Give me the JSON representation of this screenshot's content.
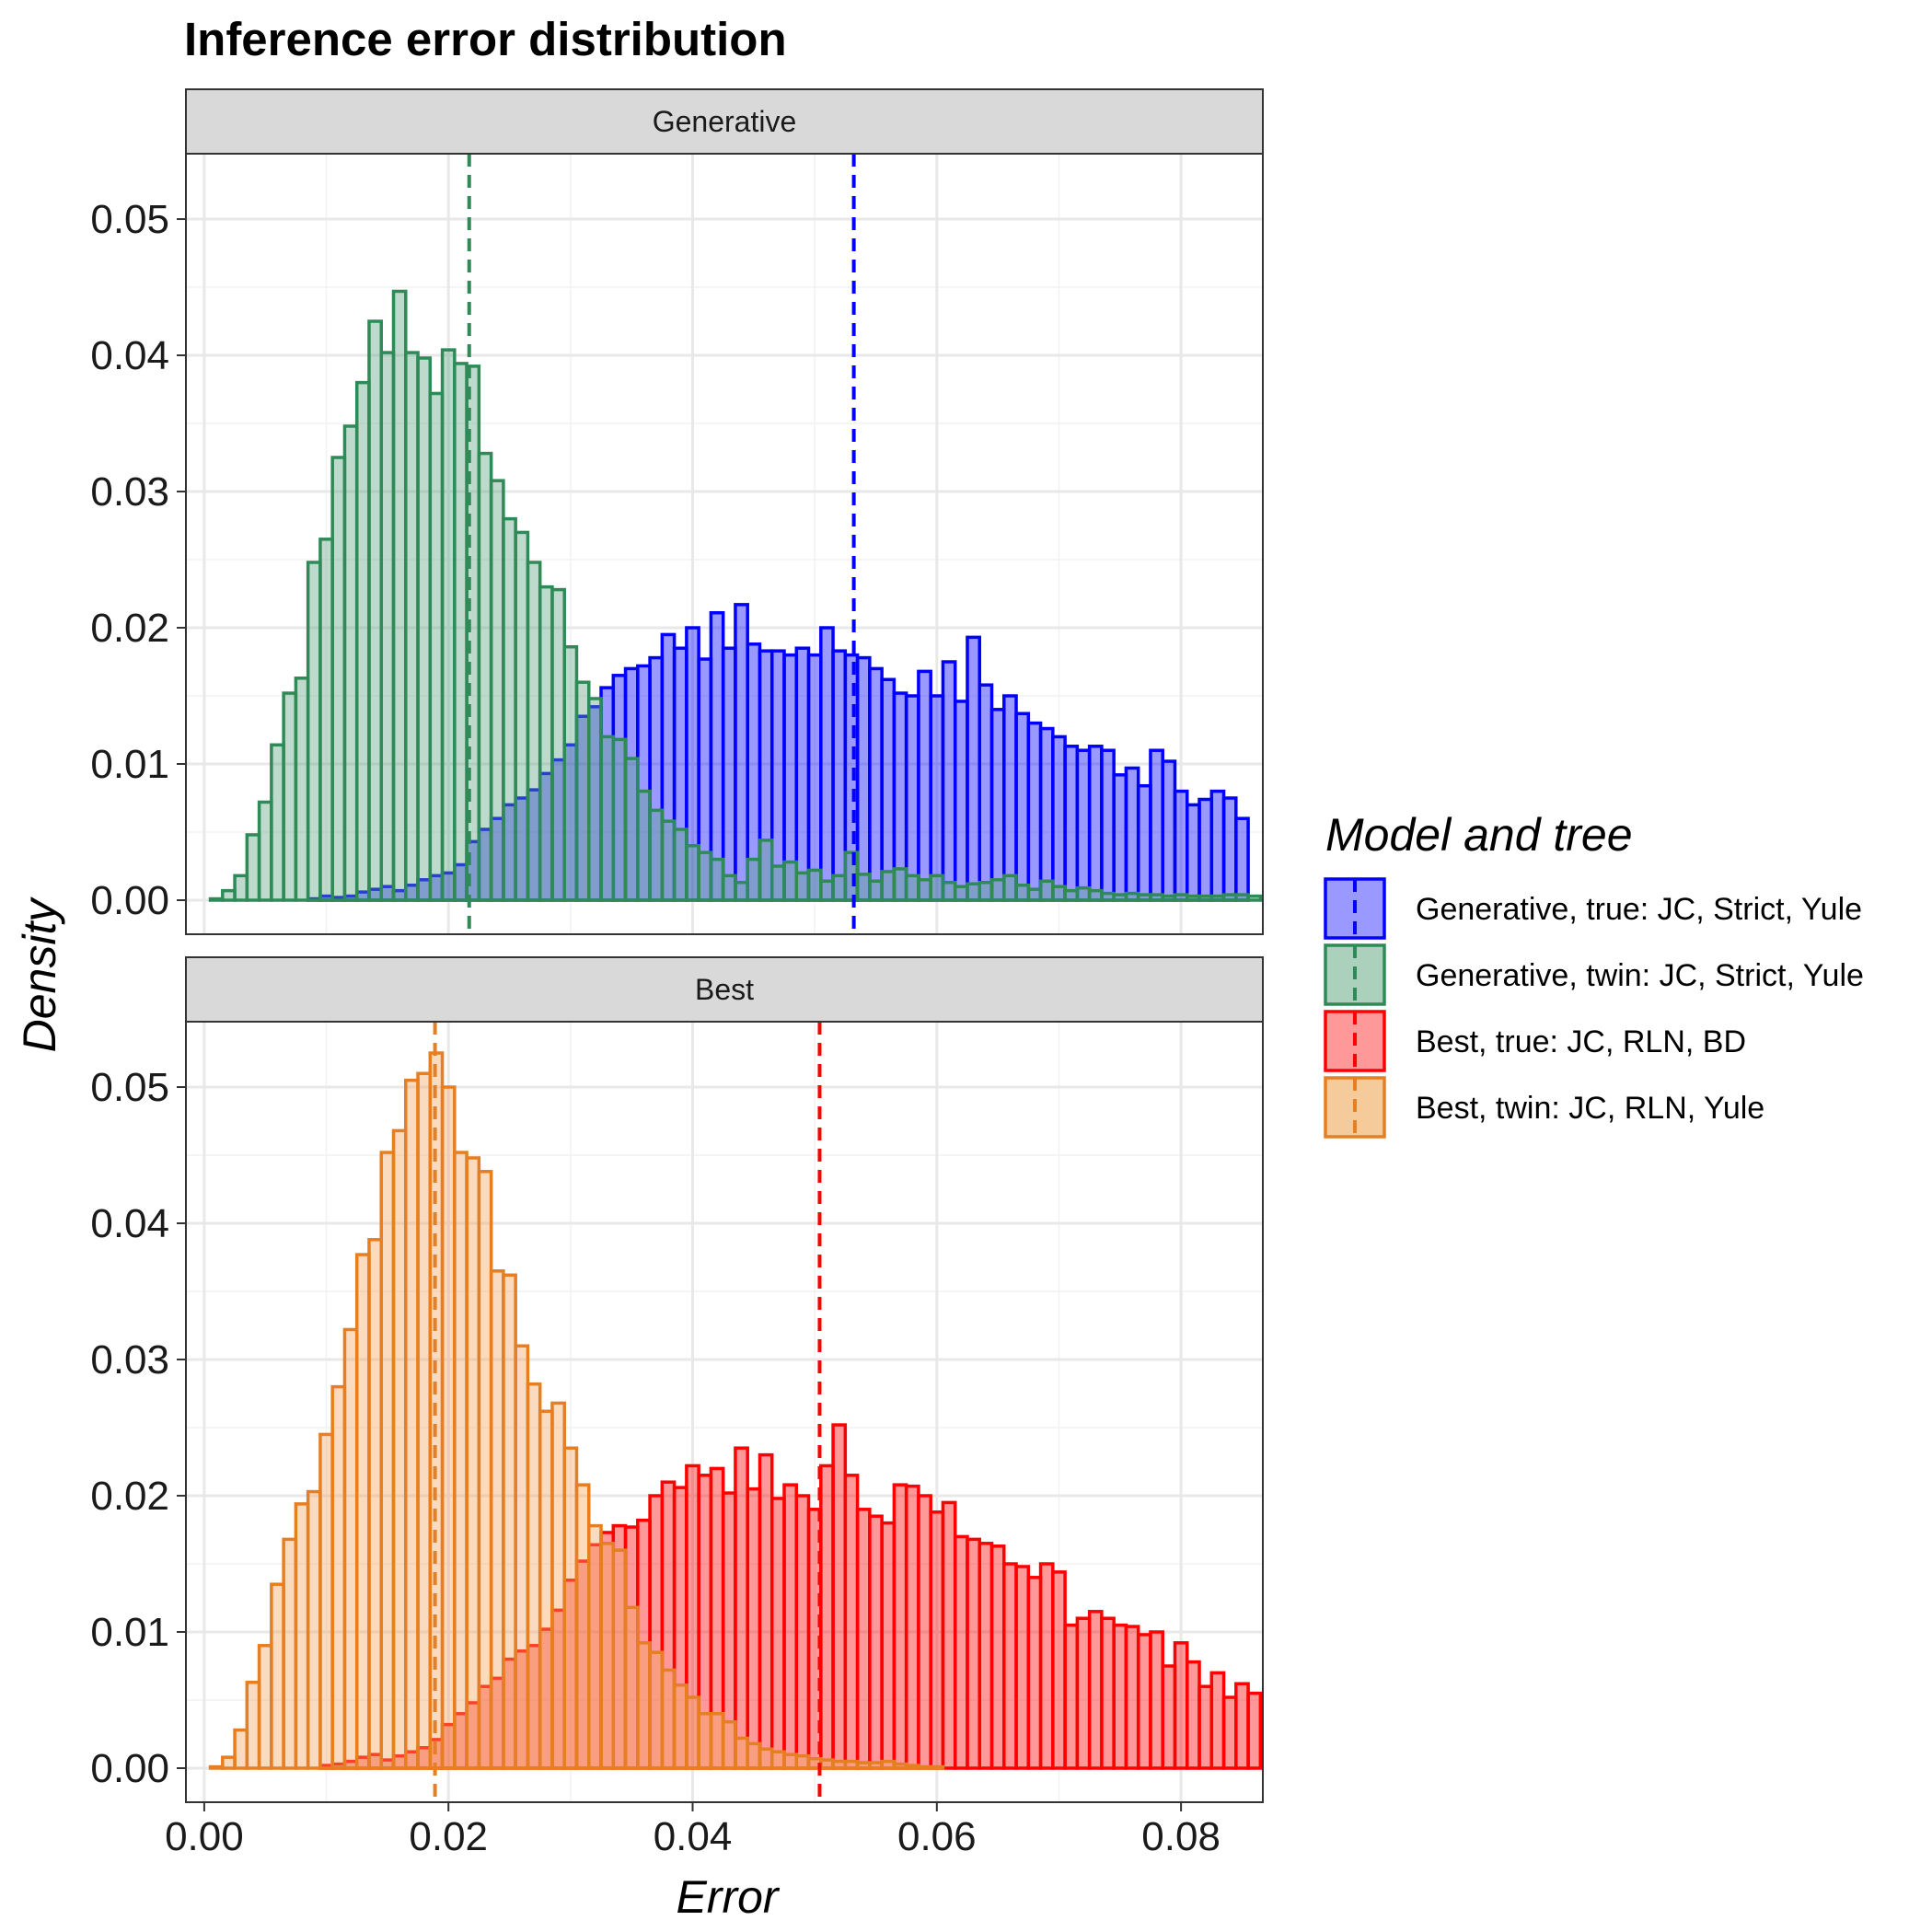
{
  "chart_data": {
    "type": "histogram",
    "title": "Inference error distribution",
    "xlabel": "Error",
    "ylabel": "Density",
    "xlim": [
      -0.0015,
      0.0867
    ],
    "ylim": [
      -0.0025,
      0.0548
    ],
    "x_ticks": [
      "0.00",
      "0.02",
      "0.04",
      "0.06",
      "0.08"
    ],
    "y_ticks": [
      "0.00",
      "0.01",
      "0.02",
      "0.03",
      "0.04",
      "0.05"
    ],
    "bin_start": 0.0005,
    "bin_width": 0.001,
    "grid": true,
    "legend": {
      "title": "Model and tree",
      "position": "right",
      "items": [
        {
          "label": "Generative, true: JC, Strict, Yule",
          "color": "#0000ff",
          "fill": "#9999ff"
        },
        {
          "label": "Generative, twin: JC, Strict, Yule",
          "color": "#2e8b57",
          "fill": "#abd1bc"
        },
        {
          "label": "Best, true: JC, RLN, BD",
          "color": "#ff0000",
          "fill": "#ff9999"
        },
        {
          "label": "Best, twin: JC, RLN, Yule",
          "color": "#e67e22",
          "fill": "#f5cb9c"
        }
      ]
    },
    "panels": [
      {
        "strip": "Generative",
        "series": [
          {
            "name": "Generative, true: JC, Strict, Yule",
            "line_color": "#0000ff",
            "fill_color": "#0000ff",
            "mean": 0.0532,
            "values": [
              0,
              0,
              0,
              0,
              0,
              0,
              0,
              0,
              0.0001,
              0.0003,
              0.0002,
              0.0003,
              0.0006,
              0.0008,
              0.001,
              0.0007,
              0.0011,
              0.0015,
              0.0018,
              0.002,
              0.0026,
              0.0043,
              0.0052,
              0.006,
              0.007,
              0.0075,
              0.0081,
              0.0093,
              0.0103,
              0.0114,
              0.0135,
              0.0142,
              0.0156,
              0.0165,
              0.017,
              0.0172,
              0.0178,
              0.0195,
              0.0185,
              0.02,
              0.0177,
              0.0211,
              0.0185,
              0.0217,
              0.0188,
              0.0183,
              0.0183,
              0.018,
              0.0185,
              0.018,
              0.02,
              0.0183,
              0.018,
              0.0178,
              0.017,
              0.0162,
              0.0152,
              0.015,
              0.0168,
              0.015,
              0.0175,
              0.0146,
              0.0193,
              0.0158,
              0.014,
              0.015,
              0.0137,
              0.013,
              0.0126,
              0.012,
              0.0113,
              0.011,
              0.0113,
              0.011,
              0.0092,
              0.0097,
              0.0084,
              0.011,
              0.0102,
              0.008,
              0.007,
              0.0074,
              0.008,
              0.0075,
              0.006
            ]
          },
          {
            "name": "Generative, twin: JC, Strict, Yule",
            "line_color": "#2e8b57",
            "fill_color": "#5da382",
            "mean": 0.0217,
            "values": [
              0.0001,
              0.0007,
              0.0018,
              0.0048,
              0.0072,
              0.0114,
              0.0152,
              0.0163,
              0.0248,
              0.0265,
              0.0325,
              0.0348,
              0.038,
              0.0425,
              0.0402,
              0.0447,
              0.0402,
              0.0398,
              0.0372,
              0.0404,
              0.0394,
              0.0392,
              0.0328,
              0.0308,
              0.028,
              0.027,
              0.0248,
              0.023,
              0.0228,
              0.0186,
              0.016,
              0.0148,
              0.012,
              0.0118,
              0.0104,
              0.008,
              0.0066,
              0.0058,
              0.0052,
              0.004,
              0.0035,
              0.003,
              0.0018,
              0.0013,
              0.003,
              0.0044,
              0.0025,
              0.0028,
              0.002,
              0.0022,
              0.0014,
              0.0018,
              0.0035,
              0.0019,
              0.0014,
              0.0021,
              0.0023,
              0.0018,
              0.0015,
              0.0018,
              0.0013,
              0.001,
              0.0012,
              0.0013,
              0.0015,
              0.0018,
              0.0011,
              0.0008,
              0.0014,
              0.001,
              0.0007,
              0.0009,
              0.0007,
              0.0005,
              0.0004,
              0.0005,
              0.0004,
              0.0004,
              0.0003,
              0.0004,
              0.0003,
              0.0003,
              0.0003,
              0.0004,
              0.0004,
              0.0003
            ]
          }
        ]
      },
      {
        "strip": "Best",
        "series": [
          {
            "name": "Best, true: JC, RLN, BD",
            "line_color": "#ff0000",
            "fill_color": "#ff0000",
            "mean": 0.0504,
            "values": [
              0,
              0,
              0,
              0,
              0,
              0,
              0,
              0,
              0,
              0.0002,
              0.0003,
              0.0005,
              0.0008,
              0.001,
              0.0006,
              0.0009,
              0.0012,
              0.0015,
              0.0021,
              0.0032,
              0.004,
              0.0048,
              0.006,
              0.0066,
              0.008,
              0.0086,
              0.009,
              0.0102,
              0.0116,
              0.0138,
              0.0152,
              0.0164,
              0.0173,
              0.0178,
              0.0177,
              0.0182,
              0.02,
              0.021,
              0.0206,
              0.0222,
              0.0215,
              0.022,
              0.0202,
              0.0235,
              0.0205,
              0.023,
              0.0198,
              0.0208,
              0.02,
              0.019,
              0.0222,
              0.0252,
              0.0215,
              0.019,
              0.0185,
              0.018,
              0.0208,
              0.0207,
              0.02,
              0.0188,
              0.0195,
              0.017,
              0.0168,
              0.0165,
              0.0163,
              0.015,
              0.0148,
              0.014,
              0.015,
              0.0144,
              0.0105,
              0.011,
              0.0115,
              0.011,
              0.0105,
              0.0104,
              0.0098,
              0.01,
              0.0075,
              0.0092,
              0.0078,
              0.006,
              0.007,
              0.0052,
              0.0062,
              0.0055
            ]
          },
          {
            "name": "Best, twin: JC, RLN, Yule",
            "line_color": "#e67e22",
            "fill_color": "#f2a55e",
            "mean": 0.0189,
            "values": [
              0.0001,
              0.0008,
              0.0028,
              0.0063,
              0.009,
              0.0135,
              0.0168,
              0.0194,
              0.0203,
              0.0245,
              0.028,
              0.0322,
              0.0377,
              0.0388,
              0.0452,
              0.0468,
              0.0505,
              0.051,
              0.0525,
              0.05,
              0.0452,
              0.0448,
              0.0438,
              0.0365,
              0.0362,
              0.031,
              0.0282,
              0.0262,
              0.0268,
              0.0235,
              0.0208,
              0.0178,
              0.0165,
              0.016,
              0.0118,
              0.0092,
              0.0085,
              0.0072,
              0.0061,
              0.0052,
              0.004,
              0.004,
              0.0034,
              0.0022,
              0.0018,
              0.0014,
              0.0012,
              0.001,
              0.0009,
              0.0007,
              0.0006,
              0.0005,
              0.0005,
              0.0004,
              0.0004,
              0.0005,
              0.0003,
              0.0002,
              0.0001,
              0.0001,
              0,
              0,
              0,
              0,
              0,
              0,
              0,
              0,
              0,
              0,
              0,
              0,
              0,
              0,
              0,
              0,
              0,
              0,
              0,
              0,
              0,
              0,
              0,
              0,
              0,
              0
            ]
          }
        ]
      }
    ]
  }
}
